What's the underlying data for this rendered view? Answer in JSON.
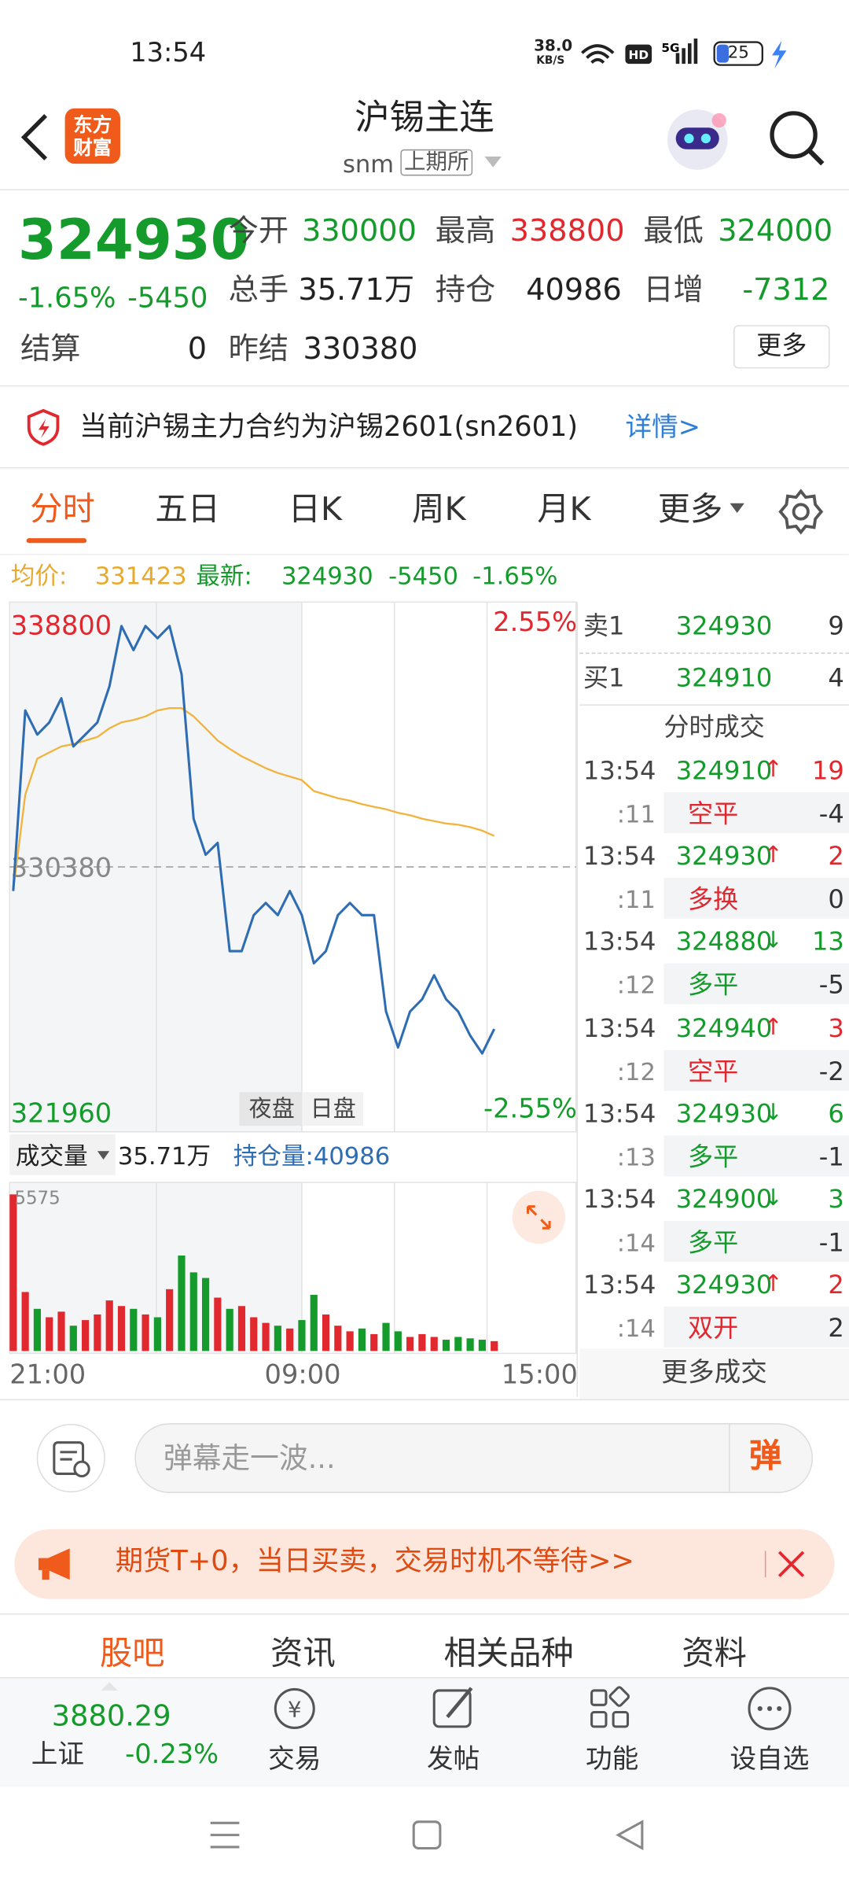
{
  "status_bar": {
    "time": "13:54",
    "net_speed": "38.0",
    "net_unit": "KB/S",
    "battery": "25"
  },
  "header": {
    "logo": [
      "东方",
      "财富"
    ],
    "title": "沪锡主连",
    "subtitle": "snm",
    "exchange": "上期所"
  },
  "quote": {
    "price": "324930",
    "change_pct": "-1.65%",
    "change": "-5450",
    "fields": [
      {
        "label": "今开",
        "value": "330000",
        "color": "#149b2c"
      },
      {
        "label": "最高",
        "value": "338800",
        "color": "#e0282e"
      },
      {
        "label": "最低",
        "value": "324000",
        "color": "#149b2c"
      },
      {
        "label": "总手",
        "value": "35.71万",
        "color": "#222222"
      },
      {
        "label": "持仓",
        "value": "40986",
        "color": "#222222"
      },
      {
        "label": "日增",
        "value": "-7312",
        "color": "#149b2c"
      },
      {
        "label": "结算",
        "value": "0",
        "color": "#222222"
      },
      {
        "label": "昨结",
        "value": "330380",
        "color": "#222222"
      }
    ],
    "more": "更多"
  },
  "notice": {
    "text": "当前沪锡主力合约为沪锡2601(sn2601)",
    "link": "详情>"
  },
  "tabs": [
    "分时",
    "五日",
    "日K",
    "周K",
    "月K",
    "更多"
  ],
  "info_line": {
    "avg_label": "均价:",
    "avg": "331423",
    "latest_label": "最新:",
    "latest": "324930",
    "change": "-5450",
    "change_pct": "-1.65%"
  },
  "chart": {
    "type": "line",
    "ylim": [
      321960,
      338800
    ],
    "yticks": [
      338800,
      330380,
      321960
    ],
    "pct_labels": [
      "2.55%",
      "-2.55%"
    ],
    "session_labels": [
      "夜盘",
      "日盘"
    ],
    "x_labels": [
      "21:00",
      "09:00",
      "15:00"
    ],
    "price": [
      329570,
      335640,
      334830,
      335240,
      336050,
      334430,
      334830,
      335240,
      336450,
      338480,
      337670,
      338480,
      338070,
      338480,
      336860,
      332000,
      330790,
      331190,
      327550,
      327550,
      328760,
      329170,
      328760,
      329570,
      328760,
      327140,
      327550,
      328760,
      329170,
      328760,
      328760,
      325520,
      324310,
      325520,
      325930,
      326740,
      325930,
      325520,
      324710,
      324110,
      324930
    ],
    "average": [
      329570,
      332810,
      334020,
      334230,
      334430,
      334510,
      334630,
      334750,
      335040,
      335240,
      335320,
      335440,
      335640,
      335720,
      335720,
      335440,
      335040,
      334630,
      334350,
      334100,
      333900,
      333700,
      333540,
      333420,
      333300,
      332930,
      332810,
      332690,
      332610,
      332490,
      332400,
      332320,
      332200,
      332120,
      332000,
      331920,
      331840,
      331800,
      331720,
      331600,
      331423
    ],
    "price_color": "#2f6db3",
    "average_color": "#f2b33d"
  },
  "volume": {
    "label": "成交量",
    "total": "35.71万",
    "oi_label": "持仓量:40986",
    "max": 5575,
    "values": [
      5575,
      2100,
      1500,
      1200,
      1400,
      900,
      1100,
      1300,
      1800,
      1600,
      1500,
      1300,
      1200,
      2200,
      3400,
      2800,
      2600,
      1900,
      1500,
      1600,
      1200,
      1000,
      900,
      800,
      1100,
      2000,
      1300,
      900,
      700,
      800,
      600,
      1000,
      700,
      500,
      600,
      500,
      400,
      500,
      450,
      400,
      350
    ]
  },
  "order_book": [
    {
      "side": "卖1",
      "price": "324930",
      "volume": "9"
    },
    {
      "side": "买1",
      "price": "324910",
      "volume": "4"
    }
  ],
  "trades_title": "分时成交",
  "trades": [
    {
      "time": "13:54",
      "price": "324910",
      "arrow": "↑",
      "volume": "19",
      "sub_time": ":11",
      "type": "空平",
      "type_color": "#e0282e",
      "change": "-4"
    },
    {
      "time": "13:54",
      "price": "324930",
      "arrow": "↑",
      "volume": "2",
      "sub_time": ":11",
      "type": "多换",
      "type_color": "#e0282e",
      "change": "0"
    },
    {
      "time": "13:54",
      "price": "324880",
      "arrow": "↓",
      "volume": "13",
      "sub_time": ":12",
      "type": "多平",
      "type_color": "#149b2c",
      "change": "-5"
    },
    {
      "time": "13:54",
      "price": "324940",
      "arrow": "↑",
      "volume": "3",
      "sub_time": ":12",
      "type": "空平",
      "type_color": "#e0282e",
      "change": "-2"
    },
    {
      "time": "13:54",
      "price": "324930",
      "arrow": "↓",
      "volume": "6",
      "sub_time": ":13",
      "type": "多平",
      "type_color": "#149b2c",
      "change": "-1"
    },
    {
      "time": "13:54",
      "price": "324900",
      "arrow": "↓",
      "volume": "3",
      "sub_time": ":14",
      "type": "多平",
      "type_color": "#149b2c",
      "change": "-1"
    },
    {
      "time": "13:54",
      "price": "324930",
      "arrow": "↑",
      "volume": "2",
      "sub_time": ":14",
      "type": "双开",
      "type_color": "#e0282e",
      "change": "2"
    }
  ],
  "trades_more": "更多成交",
  "comment": {
    "placeholder": "弹幕走一波...",
    "button": "弹"
  },
  "banner": {
    "text": "期货T+0，当日买卖，交易时机不等待>>"
  },
  "bottom_tabs": [
    "股吧",
    "资讯",
    "相关品种",
    "资料"
  ],
  "bottom_nav": {
    "index": {
      "value": "3880.29",
      "name": "上证",
      "change": "-0.23%"
    },
    "items": [
      "交易",
      "发帖",
      "功能",
      "设自选"
    ]
  }
}
